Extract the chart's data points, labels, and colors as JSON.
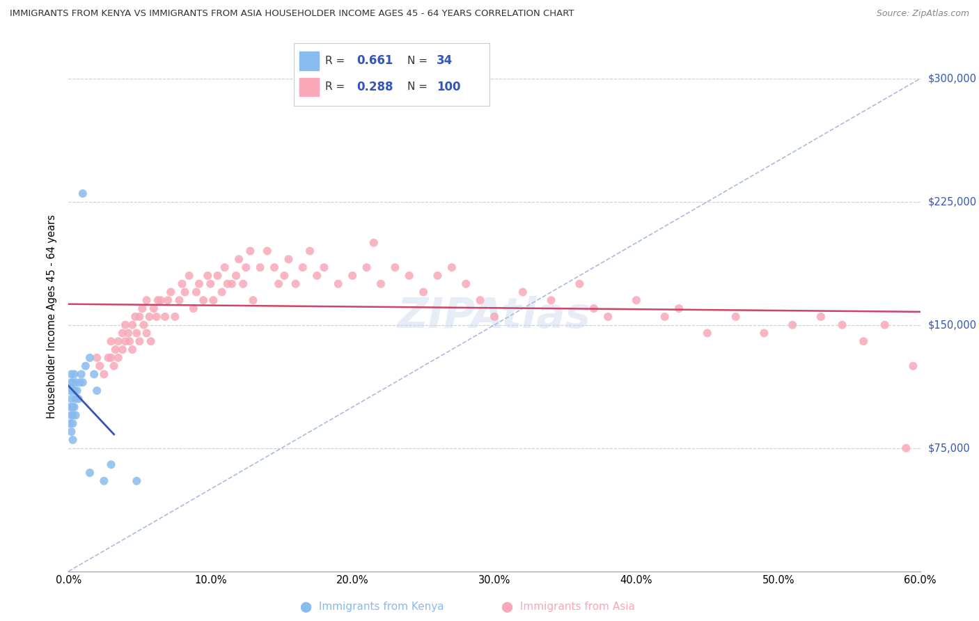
{
  "title": "IMMIGRANTS FROM KENYA VS IMMIGRANTS FROM ASIA HOUSEHOLDER INCOME AGES 45 - 64 YEARS CORRELATION CHART",
  "source": "Source: ZipAtlas.com",
  "ylabel": "Householder Income Ages 45 - 64 years",
  "kenya_R": 0.661,
  "kenya_N": 34,
  "asia_R": 0.288,
  "asia_N": 100,
  "kenya_color": "#88bbee",
  "asia_color": "#f8a8b8",
  "kenya_line_color": "#3355bb",
  "asia_line_color": "#cc4466",
  "ref_line_color": "#aabbdd",
  "background_color": "#ffffff",
  "xmin": 0.0,
  "xmax": 0.6,
  "ymin": 0,
  "ymax": 310000,
  "ytick_labels": [
    "$75,000",
    "$150,000",
    "$225,000",
    "$300,000"
  ],
  "ytick_values": [
    75000,
    150000,
    225000,
    300000
  ],
  "xtick_labels": [
    "0.0%",
    "10.0%",
    "20.0%",
    "30.0%",
    "40.0%",
    "50.0%",
    "60.0%"
  ],
  "xtick_values": [
    0.0,
    0.1,
    0.2,
    0.3,
    0.4,
    0.5,
    0.6
  ],
  "kenya_x": [
    0.001,
    0.001,
    0.001,
    0.002,
    0.002,
    0.002,
    0.002,
    0.002,
    0.003,
    0.003,
    0.003,
    0.003,
    0.003,
    0.003,
    0.004,
    0.004,
    0.004,
    0.005,
    0.005,
    0.005,
    0.006,
    0.007,
    0.008,
    0.009,
    0.01,
    0.012,
    0.015,
    0.018,
    0.02,
    0.025,
    0.03,
    0.048,
    0.01,
    0.015
  ],
  "kenya_y": [
    90000,
    100000,
    110000,
    85000,
    95000,
    105000,
    115000,
    120000,
    80000,
    90000,
    95000,
    100000,
    110000,
    115000,
    100000,
    110000,
    120000,
    95000,
    105000,
    115000,
    110000,
    105000,
    115000,
    120000,
    115000,
    125000,
    130000,
    120000,
    110000,
    55000,
    65000,
    55000,
    230000,
    60000
  ],
  "asia_x": [
    0.02,
    0.022,
    0.025,
    0.028,
    0.03,
    0.03,
    0.032,
    0.033,
    0.035,
    0.035,
    0.038,
    0.038,
    0.04,
    0.04,
    0.042,
    0.043,
    0.045,
    0.045,
    0.047,
    0.048,
    0.05,
    0.05,
    0.052,
    0.053,
    0.055,
    0.055,
    0.057,
    0.058,
    0.06,
    0.062,
    0.063,
    0.065,
    0.068,
    0.07,
    0.072,
    0.075,
    0.078,
    0.08,
    0.082,
    0.085,
    0.088,
    0.09,
    0.092,
    0.095,
    0.098,
    0.1,
    0.102,
    0.105,
    0.108,
    0.11,
    0.112,
    0.115,
    0.118,
    0.12,
    0.123,
    0.125,
    0.128,
    0.13,
    0.135,
    0.14,
    0.145,
    0.148,
    0.152,
    0.155,
    0.16,
    0.165,
    0.17,
    0.175,
    0.18,
    0.19,
    0.2,
    0.21,
    0.215,
    0.22,
    0.23,
    0.24,
    0.25,
    0.26,
    0.27,
    0.28,
    0.29,
    0.3,
    0.32,
    0.34,
    0.36,
    0.37,
    0.38,
    0.4,
    0.42,
    0.43,
    0.45,
    0.47,
    0.49,
    0.51,
    0.53,
    0.545,
    0.56,
    0.575,
    0.59,
    0.595
  ],
  "asia_y": [
    130000,
    125000,
    120000,
    130000,
    130000,
    140000,
    125000,
    135000,
    140000,
    130000,
    145000,
    135000,
    150000,
    140000,
    145000,
    140000,
    150000,
    135000,
    155000,
    145000,
    155000,
    140000,
    160000,
    150000,
    165000,
    145000,
    155000,
    140000,
    160000,
    155000,
    165000,
    165000,
    155000,
    165000,
    170000,
    155000,
    165000,
    175000,
    170000,
    180000,
    160000,
    170000,
    175000,
    165000,
    180000,
    175000,
    165000,
    180000,
    170000,
    185000,
    175000,
    175000,
    180000,
    190000,
    175000,
    185000,
    195000,
    165000,
    185000,
    195000,
    185000,
    175000,
    180000,
    190000,
    175000,
    185000,
    195000,
    180000,
    185000,
    175000,
    180000,
    185000,
    200000,
    175000,
    185000,
    180000,
    170000,
    180000,
    185000,
    175000,
    165000,
    155000,
    170000,
    165000,
    175000,
    160000,
    155000,
    165000,
    155000,
    160000,
    145000,
    155000,
    145000,
    150000,
    155000,
    150000,
    140000,
    150000,
    75000,
    125000
  ]
}
